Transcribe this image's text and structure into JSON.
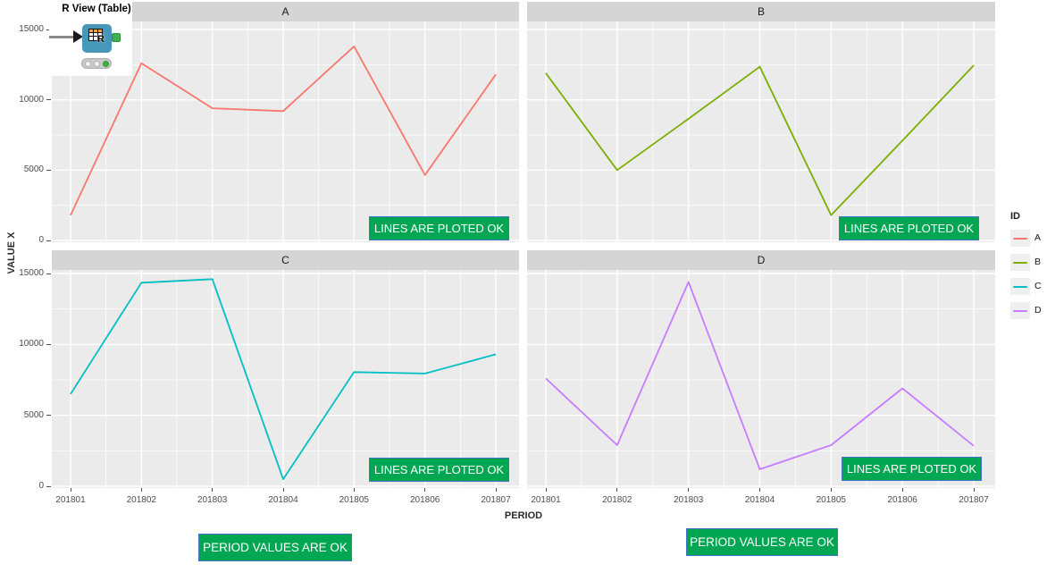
{
  "workflow_node": {
    "label": "R View (Table)",
    "body_color": "#4797B8",
    "port_color": "#3EB24B",
    "status_lights": [
      "off",
      "off",
      "green"
    ]
  },
  "annotations": {
    "lines_ok_label": "LINES ARE PLOTED OK",
    "period_ok_label": "PERIOD VALUES ARE OK",
    "box_fill": "#00A651",
    "box_border": "#4472C4",
    "box_text_color": "#FFFFFF"
  },
  "chart_data": {
    "type": "line",
    "title": "",
    "xlabel": "PERIOD",
    "ylabel": "VALUE X",
    "facets": [
      "A",
      "B",
      "C",
      "D"
    ],
    "x_categories": [
      "201801",
      "201802",
      "201803",
      "201804",
      "201805",
      "201806",
      "201807"
    ],
    "y_ticks": [
      0,
      5000,
      10000,
      15000
    ],
    "ylim": [
      0,
      15600
    ],
    "grid": true,
    "legend_title": "ID",
    "legend_position": "right",
    "panel_bg": "#EBEBEB",
    "strip_bg": "#D5D5D5",
    "grid_color": "#FFFFFF",
    "series": [
      {
        "name": "A",
        "facet": "A",
        "color": "#F8766D",
        "values": [
          1800,
          12600,
          9400,
          9200,
          13800,
          4650,
          11800
        ]
      },
      {
        "name": "B",
        "facet": "B",
        "color": "#7CAE00",
        "values": [
          11900,
          5000,
          8650,
          12350,
          1800,
          7100,
          12450
        ]
      },
      {
        "name": "C",
        "facet": "C",
        "color": "#00BFC4",
        "values": [
          6500,
          14350,
          14600,
          500,
          8050,
          7950,
          9300
        ]
      },
      {
        "name": "D",
        "facet": "D",
        "color": "#C77CFF",
        "values": [
          7600,
          2900,
          14400,
          1200,
          2900,
          6900,
          2850
        ]
      }
    ]
  }
}
